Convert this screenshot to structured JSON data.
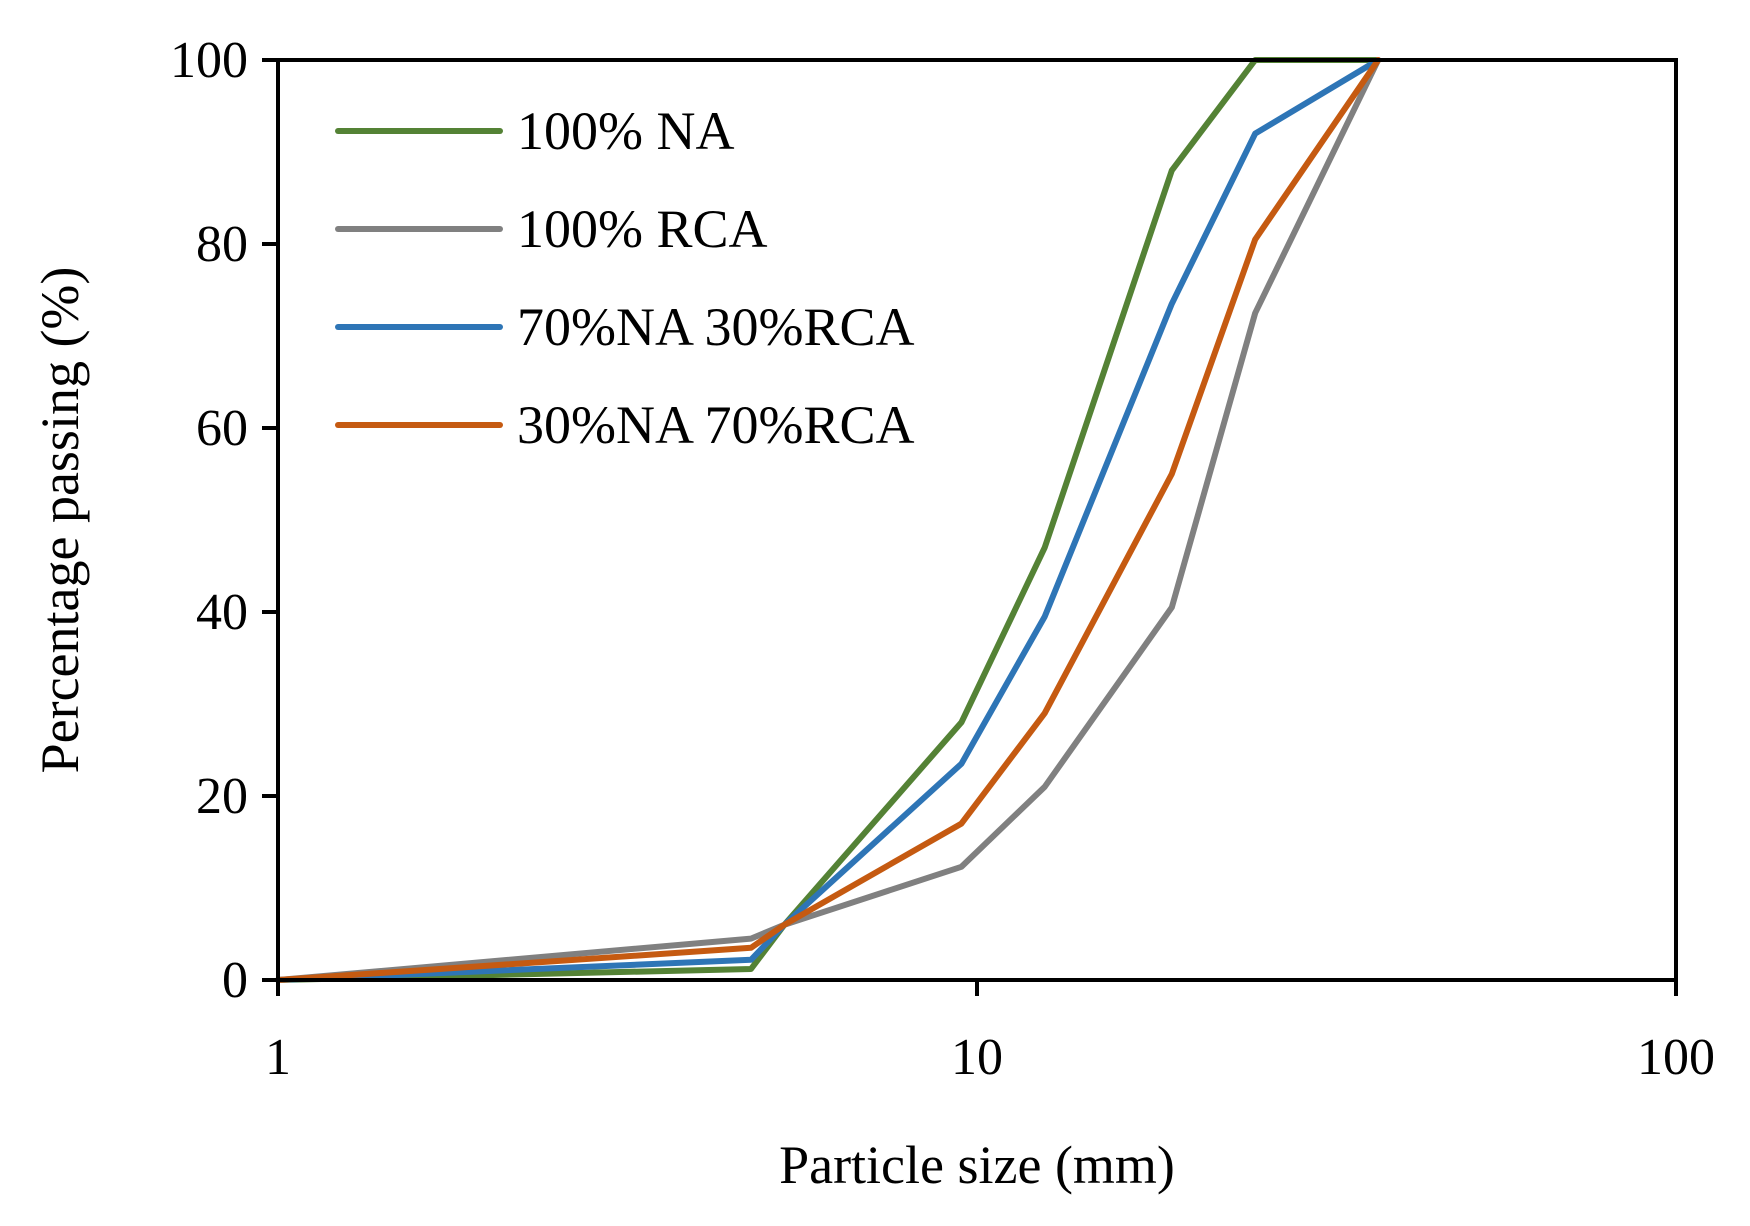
{
  "chart_data": {
    "type": "line",
    "title": "",
    "xlabel": "Particle size (mm)",
    "ylabel": "Percentage passing (%)",
    "xscale": "log",
    "xlim": [
      1,
      100
    ],
    "ylim": [
      0,
      100
    ],
    "xticks": [
      1,
      10,
      100
    ],
    "yticks": [
      0,
      20,
      40,
      60,
      80,
      100
    ],
    "xtick_labels": [
      "1",
      "10",
      "100"
    ],
    "ytick_labels": [
      "0",
      "20",
      "40",
      "60",
      "80",
      "100"
    ],
    "grid": false,
    "legend_position": "top-left",
    "series": [
      {
        "name": "100% NA",
        "color": "#548235",
        "x": [
          1,
          4.75,
          5.3,
          9.5,
          12.5,
          19,
          25,
          37.5
        ],
        "y": [
          0,
          1.2,
          6,
          28,
          47,
          88,
          100,
          100
        ]
      },
      {
        "name": "100% RCA",
        "color": "#808080",
        "x": [
          1,
          4.75,
          5.3,
          9.5,
          12.5,
          19,
          25,
          37.5
        ],
        "y": [
          0,
          4.5,
          6,
          12.3,
          21,
          40.5,
          72.5,
          100
        ]
      },
      {
        "name": "70%NA 30%RCA",
        "color": "#2E75B6",
        "x": [
          1,
          4.75,
          5.3,
          9.5,
          12.5,
          19,
          25,
          37.5
        ],
        "y": [
          0,
          2.2,
          6,
          23.5,
          39.5,
          73.5,
          92,
          100
        ]
      },
      {
        "name": "30%NA 70%RCA",
        "color": "#C55A11",
        "x": [
          1,
          4.75,
          5.3,
          9.5,
          12.5,
          19,
          25,
          37.5
        ],
        "y": [
          0,
          3.5,
          6,
          17,
          29,
          55,
          80.5,
          100
        ]
      }
    ]
  }
}
